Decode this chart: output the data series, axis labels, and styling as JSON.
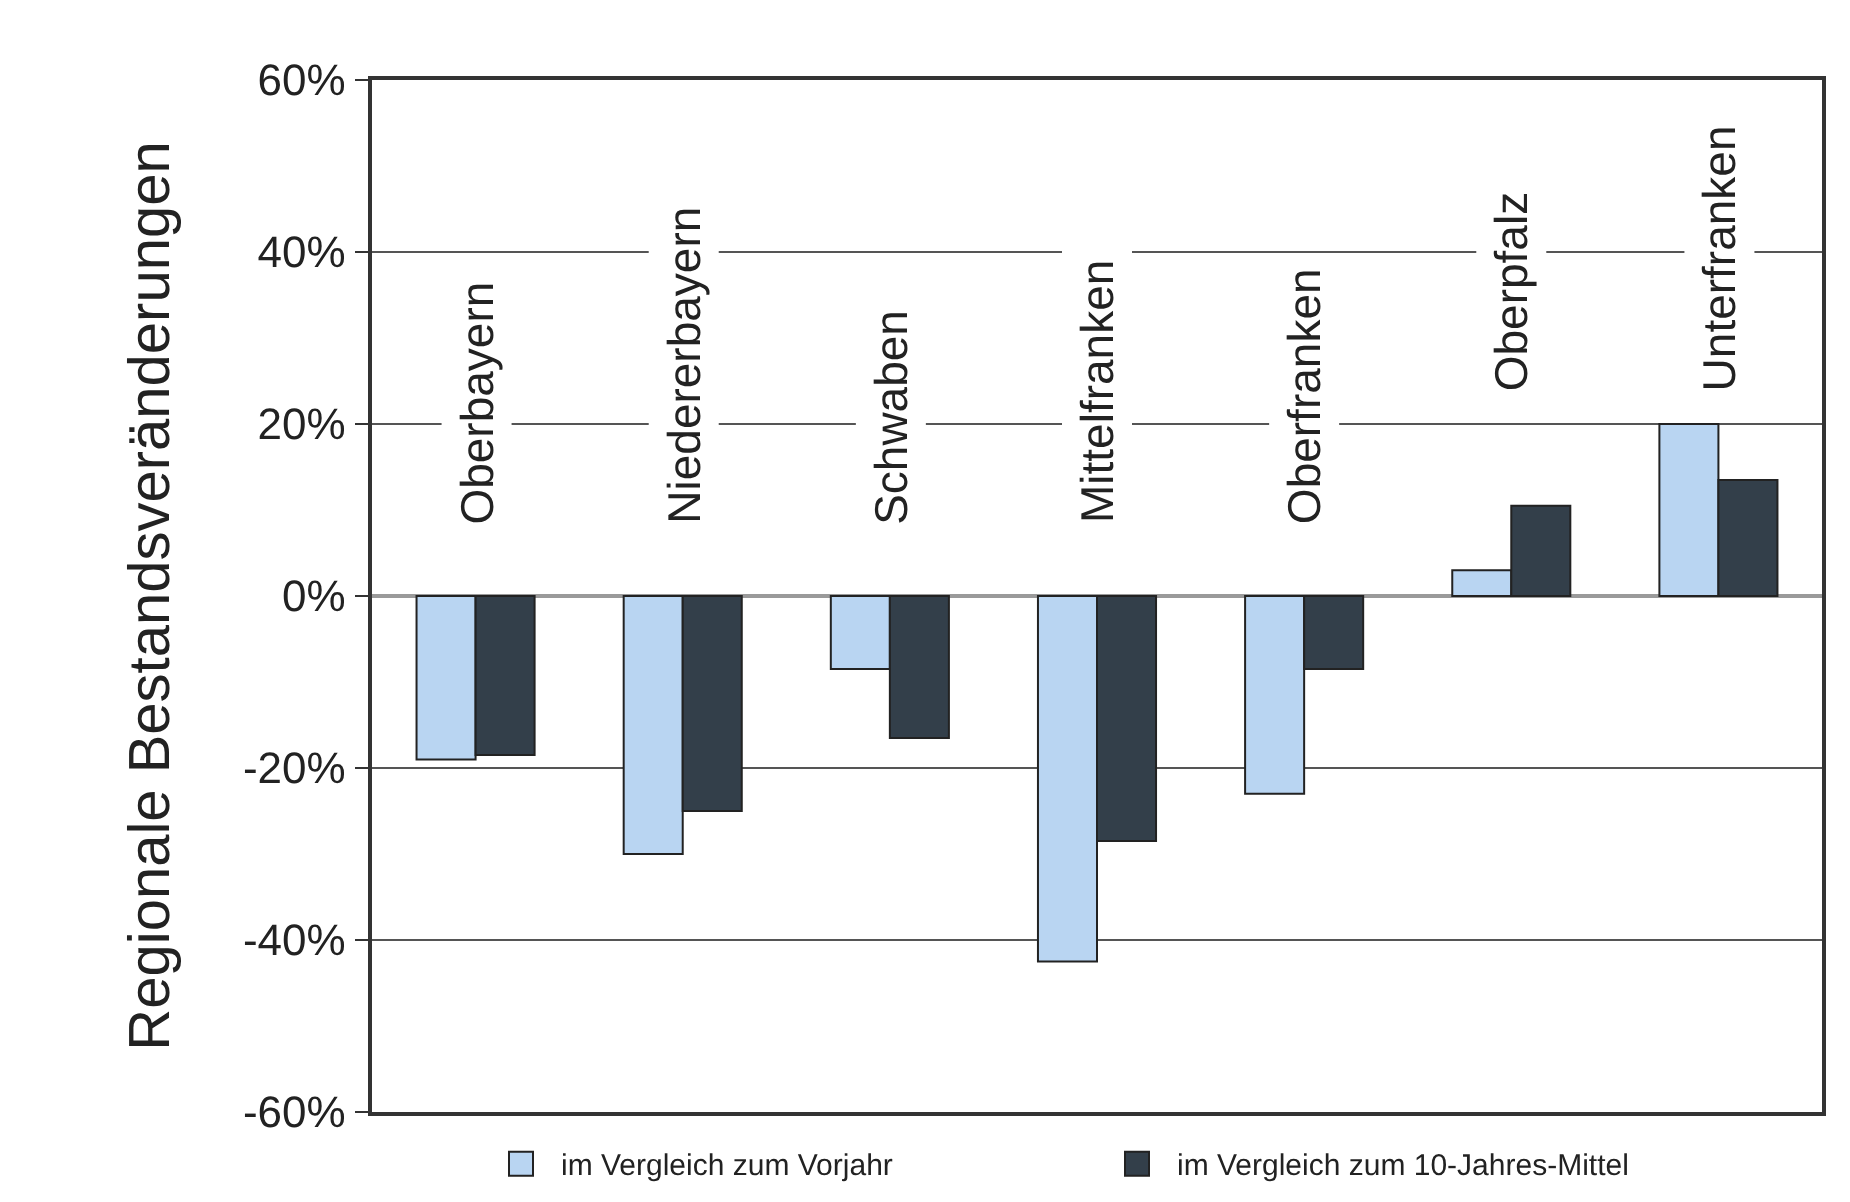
{
  "chart_data": {
    "type": "bar",
    "ylabel": "Regionale Bestandsveränderungen",
    "categories": [
      "Oberbayern",
      "Niedererbayern",
      "Schwaben",
      "Mittelfranken",
      "Oberfranken",
      "Oberpfalz",
      "Unterfranken"
    ],
    "series": [
      {
        "name": "im Vergleich zum Vorjahr",
        "color": "#b9d5f2",
        "values": [
          -19,
          -30,
          -8.5,
          -42.5,
          -23,
          3,
          20
        ]
      },
      {
        "name": "im Vergleich zum 10-Jahres-Mittel",
        "color": "#333f4a",
        "values": [
          -18.5,
          -25,
          -16.5,
          -28.5,
          -8.5,
          10.5,
          13.5
        ]
      }
    ],
    "ylim": [
      -60,
      60
    ],
    "yticks": [
      {
        "value": -60,
        "label": "-60%"
      },
      {
        "value": -40,
        "label": "-40%"
      },
      {
        "value": -20,
        "label": "-20%"
      },
      {
        "value": 0,
        "label": "0%"
      },
      {
        "value": 20,
        "label": "20%"
      },
      {
        "value": 40,
        "label": "40%"
      },
      {
        "value": 60,
        "label": "60%"
      }
    ],
    "grid": "y",
    "legend": "bottom"
  }
}
